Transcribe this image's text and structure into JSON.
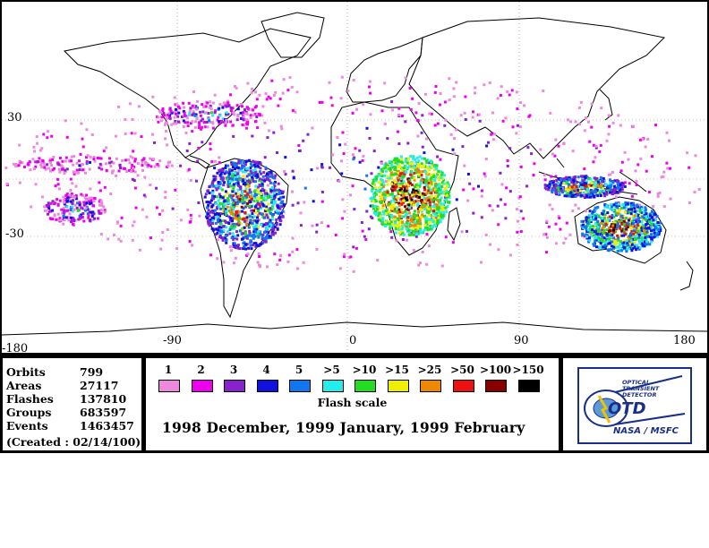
{
  "map": {
    "lon_labels": [
      "-180",
      "-90",
      "0",
      "90",
      "180"
    ],
    "lat_labels": [
      "30",
      "-30"
    ],
    "has_graticule": true
  },
  "stats": [
    {
      "name": "Orbits",
      "value": "799"
    },
    {
      "name": "Areas",
      "value": "27117"
    },
    {
      "name": "Flashes",
      "value": "137810"
    },
    {
      "name": "Groups",
      "value": "683597"
    },
    {
      "name": "Events",
      "value": "1463457"
    }
  ],
  "created": "(Created : 02/14/100)",
  "legend": {
    "title": "Flash scale",
    "levels": [
      {
        "label": "1",
        "color": "#ee88dd"
      },
      {
        "label": "2",
        "color": "#ee00ee"
      },
      {
        "label": "3",
        "color": "#8822cc"
      },
      {
        "label": "4",
        "color": "#1111dd"
      },
      {
        "label": "5",
        "color": "#1177ee"
      },
      {
        "label": ">5",
        "color": "#22eeee"
      },
      {
        "label": ">10",
        "color": "#22dd22"
      },
      {
        "label": ">15",
        "color": "#eeee00"
      },
      {
        "label": ">25",
        "color": "#ee8800"
      },
      {
        "label": ">50",
        "color": "#ee1111"
      },
      {
        "label": ">100",
        "color": "#880000"
      },
      {
        "label": ">150",
        "color": "#000000"
      }
    ]
  },
  "season": "1998 December, 1999 January, 1999 February",
  "logo": {
    "line1": "OPTICAL",
    "line2": "TRANSIENT",
    "line3": "DETECTOR",
    "letters": "OTD",
    "footer": "NASA / MSFC"
  }
}
